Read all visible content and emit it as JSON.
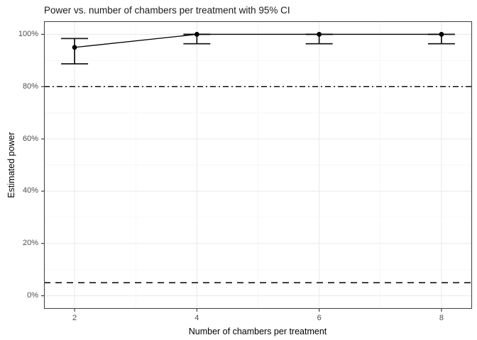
{
  "chart_data": {
    "type": "line",
    "title": "Power vs. number of chambers per treatment with 95% CI",
    "xlabel": "Number of chambers per treatment",
    "ylabel": "Estimated power",
    "x": [
      2,
      4,
      6,
      8
    ],
    "series": [
      {
        "name": "Estimated power",
        "values": [
          95,
          100,
          100,
          100
        ],
        "ci_lower": [
          88.7,
          96.4,
          96.4,
          96.4
        ],
        "ci_upper": [
          98.4,
          100,
          100,
          100
        ]
      }
    ],
    "reference_lines": [
      {
        "y": 80,
        "style": "dashdot"
      },
      {
        "y": 5,
        "style": "dashed"
      }
    ],
    "xticks": [
      2,
      4,
      6,
      8
    ],
    "xtick_labels": [
      "2",
      "4",
      "6",
      "8"
    ],
    "yticks": [
      0,
      20,
      40,
      60,
      80,
      100
    ],
    "ytick_labels": [
      "0%",
      "20%",
      "40%",
      "60%",
      "80%",
      "100%"
    ],
    "xlim": [
      1.5,
      8.5
    ],
    "ylim": [
      -5,
      105
    ],
    "grid": "major+minor",
    "legend": "none",
    "colors": {
      "point": "#000000",
      "line": "#000000",
      "errorbar": "#1a1a1a",
      "ref_dashdot": "#000000",
      "ref_dashed": "#333333",
      "grid_major": "#ebebeb",
      "grid_minor": "#f6f6f6",
      "panel_border": "#474747",
      "tick_mark": "#333333",
      "axis_text": "#4d4d4d"
    }
  }
}
